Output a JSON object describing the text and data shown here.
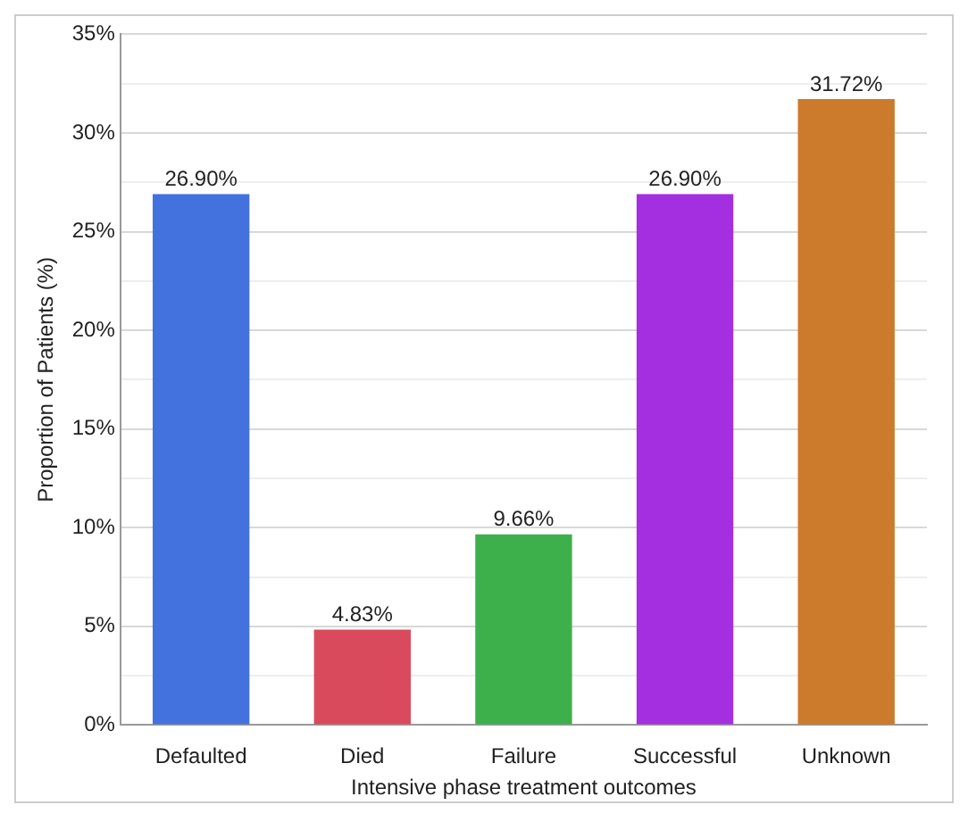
{
  "chart_data": {
    "type": "bar",
    "xlabel": "Intensive phase treatment outcomes",
    "ylabel": "Proportion of Patients (%)",
    "categories": [
      "Defaulted",
      "Died",
      "Failure",
      "Successful",
      "Unknown"
    ],
    "values": [
      26.9,
      4.83,
      9.66,
      26.9,
      31.72
    ],
    "value_labels": [
      "26.90%",
      "4.83%",
      "9.66%",
      "26.90%",
      "31.72%"
    ],
    "colors": [
      "#4372de",
      "#d94a5c",
      "#3db04b",
      "#a42fe0",
      "#cc7a2b"
    ],
    "ylim": [
      0,
      35
    ],
    "yticks": [
      {
        "value": 0,
        "label": "0%"
      },
      {
        "value": 2.5,
        "label": null
      },
      {
        "value": 5,
        "label": "5%"
      },
      {
        "value": 7.5,
        "label": null
      },
      {
        "value": 10,
        "label": "10%"
      },
      {
        "value": 12.5,
        "label": null
      },
      {
        "value": 15,
        "label": "15%"
      },
      {
        "value": 17.5,
        "label": null
      },
      {
        "value": 20,
        "label": "20%"
      },
      {
        "value": 22.5,
        "label": null
      },
      {
        "value": 25,
        "label": "25%"
      },
      {
        "value": 27.5,
        "label": null
      },
      {
        "value": 30,
        "label": "30%"
      },
      {
        "value": 32.5,
        "label": null
      },
      {
        "value": 35,
        "label": "35%"
      }
    ],
    "grid": "y",
    "legend": false
  }
}
